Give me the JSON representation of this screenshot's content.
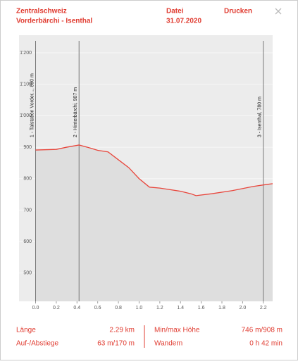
{
  "header": {
    "region": "Zentralschweiz",
    "route": "Vorderbärchi - Isenthal",
    "file": "Datei",
    "date": "31.07.2020",
    "print": "Drucken"
  },
  "chart_data": {
    "type": "area",
    "x": [
      0.0,
      0.2,
      0.3,
      0.42,
      0.5,
      0.6,
      0.7,
      0.8,
      0.9,
      1.0,
      1.1,
      1.2,
      1.3,
      1.4,
      1.5,
      1.55,
      1.7,
      1.9,
      2.1,
      2.2,
      2.29
    ],
    "values": [
      891,
      893,
      900,
      907,
      900,
      890,
      885,
      860,
      835,
      800,
      773,
      770,
      765,
      760,
      752,
      746,
      752,
      762,
      775,
      780,
      784
    ],
    "color": "#e8463c",
    "fill": "#dedede",
    "xlim": [
      -0.16,
      2.29
    ],
    "ylim": [
      410,
      1256
    ],
    "xticks": [
      {
        "value": 0,
        "label": "0.0"
      },
      0.2,
      0.4,
      0.6,
      0.8,
      {
        "value": 1,
        "label": "1.0"
      },
      1.2,
      1.4,
      1.6,
      1.8,
      {
        "value": 2,
        "label": "2.0"
      },
      2.2
    ],
    "yticks": [
      500,
      600,
      700,
      800,
      900,
      {
        "value": 1000,
        "label": "1'000"
      },
      {
        "value": 1100,
        "label": "1'100"
      },
      {
        "value": 1200,
        "label": "1'200"
      }
    ],
    "waypoints": [
      {
        "label": "1 - Talstation Vorder..., 890 m",
        "x": 0.0
      },
      {
        "label": "2 - Hinterbärchi, 907 m",
        "x": 0.42
      },
      {
        "label": "3 - Isenthal, 780 m",
        "x": 2.2
      }
    ]
  },
  "footer": {
    "length_label": "Länge",
    "length": "2.29 km",
    "updown_label": "Auf-/Abstiege",
    "updown": "63 m/170 m",
    "minmax_label": "Min/max Höhe",
    "minmax": "746 m/908 m",
    "hike_label": "Wandern",
    "hike": "0 h 42 min"
  }
}
